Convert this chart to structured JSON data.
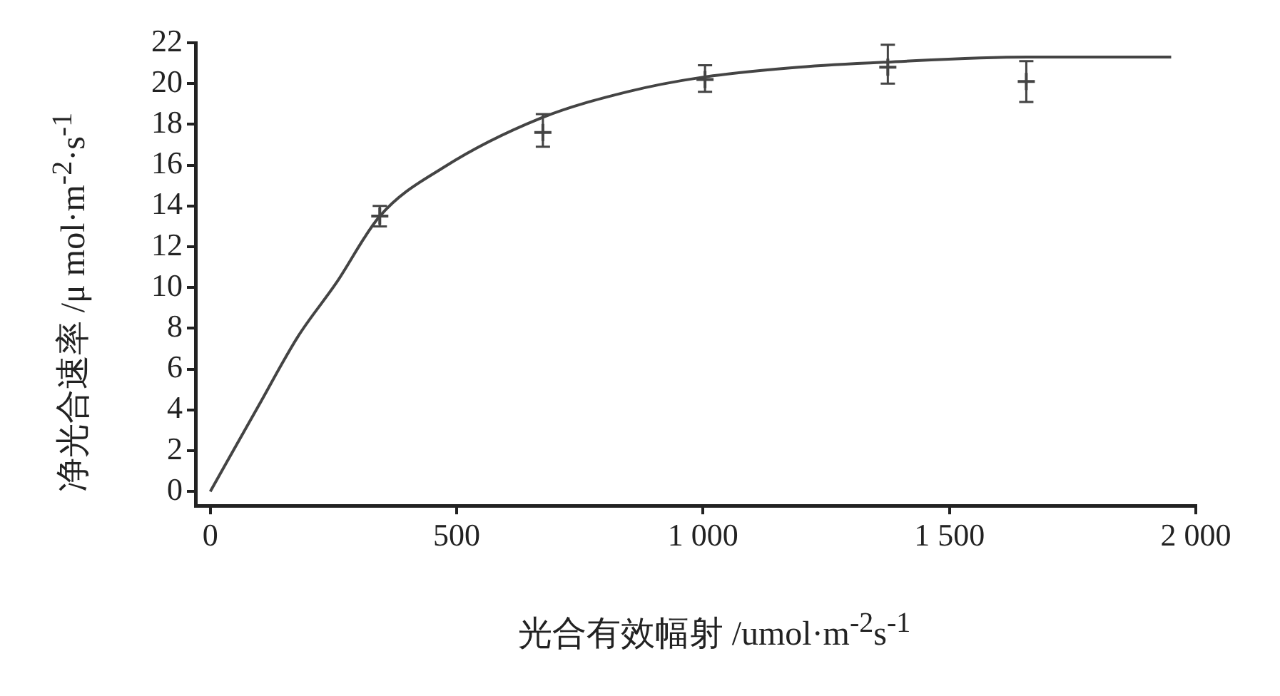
{
  "chart_data": {
    "type": "scatter",
    "xlabel": "光合有效幅射 /umol·m$^{-2}$s$^{-1}$",
    "ylabel": "净光合速率 /μ mol·m$^{-2}$·s$^{-1}$",
    "xlim": [
      -30,
      2000
    ],
    "xticks": [
      0,
      500,
      {
        "value": 1000,
        "label": "1 000"
      },
      {
        "value": 1500,
        "label": "1 500"
      },
      {
        "value": 2000,
        "label": "2 000"
      }
    ],
    "ylim": [
      -0.7,
      22
    ],
    "yticks": [
      0,
      2,
      4,
      6,
      8,
      10,
      12,
      14,
      16,
      18,
      20,
      22
    ],
    "series": [
      {
        "type": "line",
        "x": [
          0,
          98,
          178,
          255,
          344,
          474,
          670,
          847,
          996,
          1194,
          1372,
          1659,
          1950
        ],
        "values": [
          0,
          4.2,
          7.6,
          10.2,
          13.5,
          15.9,
          18.3,
          19.6,
          20.3,
          20.8,
          21.05,
          21.3,
          21.3
        ],
        "color": "#444444",
        "marker": "none",
        "line_style": "solid"
      },
      {
        "x": [
          344,
          675,
          1004,
          1375,
          1656
        ],
        "values": [
          13.5,
          17.6,
          20.2,
          20.8,
          20.1
        ],
        "errors": [
          [
            13,
            14
          ],
          [
            16.9,
            18.5
          ],
          [
            19.6,
            20.9
          ],
          [
            20,
            21.9
          ],
          [
            19.1,
            21.1
          ]
        ],
        "color": "#444444",
        "marker": "cross"
      }
    ]
  }
}
